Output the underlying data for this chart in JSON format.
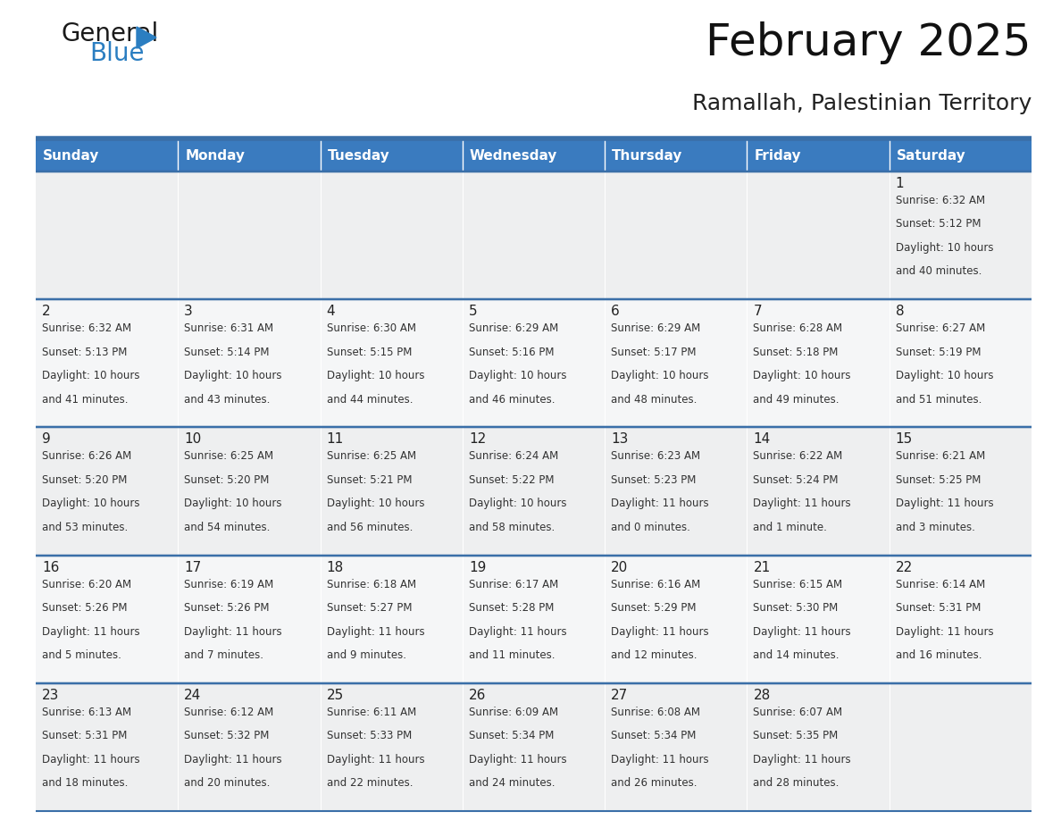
{
  "title": "February 2025",
  "subtitle": "Ramallah, Palestinian Territory",
  "header_bg_color": "#3a7bbf",
  "header_text_color": "#ffffff",
  "cell_bg_odd": "#eeeff0",
  "cell_bg_even": "#f5f6f7",
  "border_color": "#3a6fa8",
  "text_color": "#333333",
  "day_number_color": "#222222",
  "background_color": "#ffffff",
  "days_of_week": [
    "Sunday",
    "Monday",
    "Tuesday",
    "Wednesday",
    "Thursday",
    "Friday",
    "Saturday"
  ],
  "calendar_data": [
    [
      null,
      null,
      null,
      null,
      null,
      null,
      {
        "day": 1,
        "sunrise": "6:32 AM",
        "sunset": "5:12 PM",
        "daylight_hours": 10,
        "daylight_minutes": 40
      }
    ],
    [
      {
        "day": 2,
        "sunrise": "6:32 AM",
        "sunset": "5:13 PM",
        "daylight_hours": 10,
        "daylight_minutes": 41
      },
      {
        "day": 3,
        "sunrise": "6:31 AM",
        "sunset": "5:14 PM",
        "daylight_hours": 10,
        "daylight_minutes": 43
      },
      {
        "day": 4,
        "sunrise": "6:30 AM",
        "sunset": "5:15 PM",
        "daylight_hours": 10,
        "daylight_minutes": 44
      },
      {
        "day": 5,
        "sunrise": "6:29 AM",
        "sunset": "5:16 PM",
        "daylight_hours": 10,
        "daylight_minutes": 46
      },
      {
        "day": 6,
        "sunrise": "6:29 AM",
        "sunset": "5:17 PM",
        "daylight_hours": 10,
        "daylight_minutes": 48
      },
      {
        "day": 7,
        "sunrise": "6:28 AM",
        "sunset": "5:18 PM",
        "daylight_hours": 10,
        "daylight_minutes": 49
      },
      {
        "day": 8,
        "sunrise": "6:27 AM",
        "sunset": "5:19 PM",
        "daylight_hours": 10,
        "daylight_minutes": 51
      }
    ],
    [
      {
        "day": 9,
        "sunrise": "6:26 AM",
        "sunset": "5:20 PM",
        "daylight_hours": 10,
        "daylight_minutes": 53
      },
      {
        "day": 10,
        "sunrise": "6:25 AM",
        "sunset": "5:20 PM",
        "daylight_hours": 10,
        "daylight_minutes": 54
      },
      {
        "day": 11,
        "sunrise": "6:25 AM",
        "sunset": "5:21 PM",
        "daylight_hours": 10,
        "daylight_minutes": 56
      },
      {
        "day": 12,
        "sunrise": "6:24 AM",
        "sunset": "5:22 PM",
        "daylight_hours": 10,
        "daylight_minutes": 58
      },
      {
        "day": 13,
        "sunrise": "6:23 AM",
        "sunset": "5:23 PM",
        "daylight_hours": 11,
        "daylight_minutes": 0
      },
      {
        "day": 14,
        "sunrise": "6:22 AM",
        "sunset": "5:24 PM",
        "daylight_hours": 11,
        "daylight_minutes": 1
      },
      {
        "day": 15,
        "sunrise": "6:21 AM",
        "sunset": "5:25 PM",
        "daylight_hours": 11,
        "daylight_minutes": 3
      }
    ],
    [
      {
        "day": 16,
        "sunrise": "6:20 AM",
        "sunset": "5:26 PM",
        "daylight_hours": 11,
        "daylight_minutes": 5
      },
      {
        "day": 17,
        "sunrise": "6:19 AM",
        "sunset": "5:26 PM",
        "daylight_hours": 11,
        "daylight_minutes": 7
      },
      {
        "day": 18,
        "sunrise": "6:18 AM",
        "sunset": "5:27 PM",
        "daylight_hours": 11,
        "daylight_minutes": 9
      },
      {
        "day": 19,
        "sunrise": "6:17 AM",
        "sunset": "5:28 PM",
        "daylight_hours": 11,
        "daylight_minutes": 11
      },
      {
        "day": 20,
        "sunrise": "6:16 AM",
        "sunset": "5:29 PM",
        "daylight_hours": 11,
        "daylight_minutes": 12
      },
      {
        "day": 21,
        "sunrise": "6:15 AM",
        "sunset": "5:30 PM",
        "daylight_hours": 11,
        "daylight_minutes": 14
      },
      {
        "day": 22,
        "sunrise": "6:14 AM",
        "sunset": "5:31 PM",
        "daylight_hours": 11,
        "daylight_minutes": 16
      }
    ],
    [
      {
        "day": 23,
        "sunrise": "6:13 AM",
        "sunset": "5:31 PM",
        "daylight_hours": 11,
        "daylight_minutes": 18
      },
      {
        "day": 24,
        "sunrise": "6:12 AM",
        "sunset": "5:32 PM",
        "daylight_hours": 11,
        "daylight_minutes": 20
      },
      {
        "day": 25,
        "sunrise": "6:11 AM",
        "sunset": "5:33 PM",
        "daylight_hours": 11,
        "daylight_minutes": 22
      },
      {
        "day": 26,
        "sunrise": "6:09 AM",
        "sunset": "5:34 PM",
        "daylight_hours": 11,
        "daylight_minutes": 24
      },
      {
        "day": 27,
        "sunrise": "6:08 AM",
        "sunset": "5:34 PM",
        "daylight_hours": 11,
        "daylight_minutes": 26
      },
      {
        "day": 28,
        "sunrise": "6:07 AM",
        "sunset": "5:35 PM",
        "daylight_hours": 11,
        "daylight_minutes": 28
      },
      null
    ]
  ],
  "logo_color_general": "#1a1a1a",
  "logo_color_blue": "#2b7ec1",
  "logo_triangle_color": "#2b7ec1",
  "title_fontsize": 36,
  "subtitle_fontsize": 18,
  "header_fontsize": 11,
  "day_num_fontsize": 11,
  "cell_text_fontsize": 8.5
}
